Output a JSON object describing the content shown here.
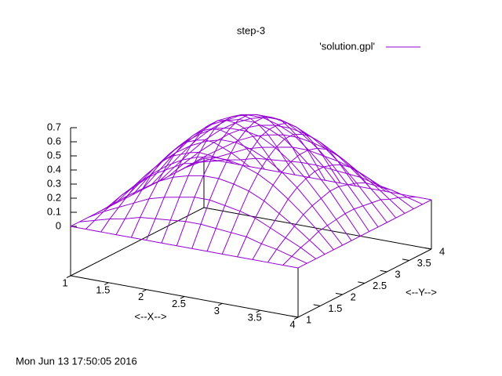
{
  "chart_data": {
    "type": "surface",
    "title": "step-3",
    "xlabel": "<--X-->",
    "ylabel": "<--Y-->",
    "timestamp": "Mon Jun 13 17:50:05 2016",
    "x": [
      1,
      1.2,
      1.4,
      1.6,
      1.8,
      2,
      2.2,
      2.4,
      2.6,
      2.8,
      3,
      3.2,
      3.4,
      3.6,
      3.8,
      4
    ],
    "y": [
      1,
      1.2,
      1.4,
      1.6,
      1.8,
      2,
      2.2,
      2.4,
      2.6,
      2.8,
      3,
      3.2,
      3.4,
      3.6,
      3.8,
      4
    ],
    "xlim": [
      1,
      4
    ],
    "ylim": [
      1,
      4
    ],
    "zlim": [
      0,
      0.7
    ],
    "xticks": [
      1,
      1.5,
      2,
      2.5,
      3,
      3.5,
      4
    ],
    "yticks": [
      1,
      1.5,
      2,
      2.5,
      3,
      3.5,
      4
    ],
    "zticks": [
      0,
      0.1,
      0.2,
      0.3,
      0.4,
      0.5,
      0.6,
      0.7
    ],
    "legend": "upper right",
    "series": [
      {
        "name": "'solution.gpl'",
        "color": "#9400d3",
        "values": [
          [
            0,
            0,
            0,
            0,
            0,
            0,
            0,
            0,
            0,
            0,
            0,
            0,
            0,
            0,
            0,
            0
          ],
          [
            0,
            0.03,
            0.06,
            0.08,
            0.11,
            0.12,
            0.13,
            0.14,
            0.14,
            0.13,
            0.12,
            0.11,
            0.08,
            0.06,
            0.03,
            0
          ],
          [
            0,
            0.06,
            0.11,
            0.16,
            0.21,
            0.24,
            0.26,
            0.28,
            0.28,
            0.26,
            0.24,
            0.21,
            0.16,
            0.11,
            0.06,
            0
          ],
          [
            0,
            0.08,
            0.16,
            0.23,
            0.3,
            0.35,
            0.38,
            0.4,
            0.4,
            0.38,
            0.35,
            0.3,
            0.23,
            0.16,
            0.08,
            0
          ],
          [
            0,
            0.11,
            0.21,
            0.3,
            0.38,
            0.44,
            0.48,
            0.5,
            0.5,
            0.48,
            0.44,
            0.38,
            0.3,
            0.21,
            0.11,
            0
          ],
          [
            0,
            0.12,
            0.24,
            0.35,
            0.44,
            0.51,
            0.56,
            0.59,
            0.59,
            0.56,
            0.51,
            0.44,
            0.35,
            0.24,
            0.12,
            0
          ],
          [
            0,
            0.13,
            0.26,
            0.38,
            0.48,
            0.56,
            0.62,
            0.64,
            0.64,
            0.62,
            0.56,
            0.48,
            0.38,
            0.26,
            0.13,
            0
          ],
          [
            0,
            0.14,
            0.28,
            0.4,
            0.5,
            0.59,
            0.64,
            0.67,
            0.67,
            0.64,
            0.59,
            0.5,
            0.4,
            0.28,
            0.14,
            0
          ],
          [
            0,
            0.14,
            0.28,
            0.4,
            0.5,
            0.59,
            0.64,
            0.67,
            0.67,
            0.64,
            0.59,
            0.5,
            0.4,
            0.28,
            0.14,
            0
          ],
          [
            0,
            0.13,
            0.26,
            0.38,
            0.48,
            0.56,
            0.62,
            0.64,
            0.64,
            0.62,
            0.56,
            0.48,
            0.38,
            0.26,
            0.13,
            0
          ],
          [
            0,
            0.12,
            0.24,
            0.35,
            0.44,
            0.51,
            0.56,
            0.59,
            0.59,
            0.56,
            0.51,
            0.44,
            0.35,
            0.24,
            0.12,
            0
          ],
          [
            0,
            0.11,
            0.21,
            0.3,
            0.38,
            0.44,
            0.48,
            0.5,
            0.5,
            0.48,
            0.44,
            0.38,
            0.3,
            0.21,
            0.11,
            0
          ],
          [
            0,
            0.08,
            0.16,
            0.23,
            0.3,
            0.35,
            0.38,
            0.4,
            0.4,
            0.38,
            0.35,
            0.3,
            0.23,
            0.16,
            0.08,
            0
          ],
          [
            0,
            0.06,
            0.11,
            0.16,
            0.21,
            0.24,
            0.26,
            0.28,
            0.28,
            0.26,
            0.24,
            0.21,
            0.16,
            0.11,
            0.06,
            0
          ],
          [
            0,
            0.03,
            0.06,
            0.08,
            0.11,
            0.12,
            0.13,
            0.14,
            0.14,
            0.13,
            0.12,
            0.11,
            0.08,
            0.06,
            0.03,
            0
          ],
          [
            0,
            0,
            0,
            0,
            0,
            0,
            0,
            0,
            0,
            0,
            0,
            0,
            0,
            0,
            0,
            0
          ]
        ]
      }
    ]
  }
}
